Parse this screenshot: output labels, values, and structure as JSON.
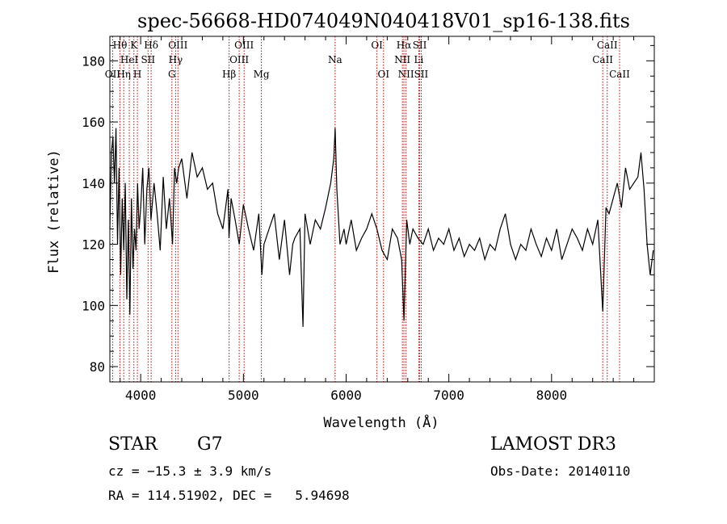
{
  "chart_data": {
    "type": "line",
    "title": "spec-56668-HD074049N040418V01_sp16-138.fits",
    "xlabel": "Wavelength (Å)",
    "ylabel": "Flux (relative)",
    "xlim": [
      3700,
      9000
    ],
    "ylim": [
      75,
      188
    ],
    "x_ticks": [
      4000,
      5000,
      6000,
      7000,
      8000
    ],
    "y_ticks": [
      80,
      100,
      120,
      140,
      160,
      180
    ],
    "grid": false,
    "line_color": "#000000",
    "marker_color": "#cc0000",
    "series": [
      {
        "x": [
          3700,
          3715,
          3730,
          3745,
          3760,
          3775,
          3790,
          3805,
          3820,
          3835,
          3850,
          3865,
          3880,
          3895,
          3910,
          3925,
          3940,
          3955,
          3970,
          3985,
          4000,
          4020,
          4040,
          4060,
          4080,
          4100,
          4130,
          4160,
          4190,
          4220,
          4250,
          4280,
          4310,
          4330,
          4350,
          4370,
          4400,
          4450,
          4500,
          4550,
          4600,
          4650,
          4700,
          4750,
          4800,
          4850,
          4860,
          4880,
          4920,
          4960,
          5000,
          5050,
          5100,
          5150,
          5180,
          5200,
          5250,
          5300,
          5350,
          5400,
          5450,
          5480,
          5500,
          5550,
          5580,
          5600,
          5650,
          5700,
          5750,
          5800,
          5850,
          5880,
          5893,
          5910,
          5940,
          5980,
          6000,
          6050,
          6100,
          6150,
          6200,
          6250,
          6300,
          6350,
          6400,
          6450,
          6500,
          6540,
          6563,
          6590,
          6620,
          6650,
          6700,
          6750,
          6800,
          6850,
          6900,
          6950,
          7000,
          7050,
          7100,
          7150,
          7200,
          7250,
          7300,
          7350,
          7400,
          7450,
          7500,
          7550,
          7600,
          7650,
          7700,
          7750,
          7800,
          7850,
          7900,
          7950,
          8000,
          8050,
          8100,
          8150,
          8200,
          8250,
          8300,
          8350,
          8400,
          8450,
          8498,
          8530,
          8560,
          8600,
          8640,
          8680,
          8720,
          8760,
          8800,
          8840,
          8870,
          8900,
          8930,
          8960,
          8990
        ],
        "y": [
          125,
          150,
          155,
          140,
          158,
          120,
          145,
          110,
          135,
          118,
          140,
          102,
          128,
          97,
          135,
          112,
          125,
          118,
          140,
          125,
          132,
          145,
          120,
          138,
          145,
          128,
          140,
          130,
          118,
          142,
          125,
          135,
          120,
          145,
          140,
          145,
          148,
          135,
          150,
          142,
          145,
          138,
          140,
          130,
          125,
          138,
          122,
          135,
          128,
          120,
          133,
          125,
          118,
          130,
          110,
          120,
          125,
          130,
          115,
          128,
          110,
          120,
          122,
          125,
          93,
          130,
          120,
          128,
          125,
          132,
          140,
          148,
          158,
          138,
          120,
          125,
          120,
          128,
          118,
          122,
          125,
          130,
          125,
          118,
          115,
          125,
          122,
          115,
          95,
          128,
          120,
          125,
          122,
          120,
          125,
          118,
          122,
          120,
          125,
          118,
          122,
          116,
          120,
          118,
          122,
          115,
          120,
          118,
          125,
          130,
          120,
          115,
          120,
          118,
          125,
          120,
          116,
          122,
          118,
          125,
          115,
          120,
          125,
          122,
          118,
          125,
          120,
          128,
          98,
          132,
          130,
          135,
          140,
          132,
          145,
          138,
          140,
          142,
          150,
          138,
          120,
          110,
          118
        ]
      }
    ],
    "lines": [
      {
        "x": 3727,
        "label": "OII",
        "row": 3
      },
      {
        "x": 3798,
        "label": "Hθ",
        "row": 1
      },
      {
        "x": 3835,
        "label": "Hη",
        "row": 3
      },
      {
        "x": 3889,
        "label": "HeI",
        "row": 2
      },
      {
        "x": 3934,
        "label": "K",
        "row": 1
      },
      {
        "x": 3968,
        "label": "H",
        "row": 3
      },
      {
        "x": 4072,
        "label": "SII",
        "row": 2
      },
      {
        "x": 4102,
        "label": "Hδ",
        "row": 1
      },
      {
        "x": 4304,
        "label": "G",
        "row": 3
      },
      {
        "x": 4340,
        "label": "Hγ",
        "row": 2
      },
      {
        "x": 4363,
        "label": "OIII",
        "row": 1
      },
      {
        "x": 4861,
        "label": "Hβ",
        "row": 3
      },
      {
        "x": 4959,
        "label": "OIII",
        "row": 2
      },
      {
        "x": 5007,
        "label": "OIII",
        "row": 1
      },
      {
        "x": 5175,
        "label": "Mg",
        "row": 3
      },
      {
        "x": 5893,
        "label": "Na",
        "row": 2
      },
      {
        "x": 6300,
        "label": "OI",
        "row": 1
      },
      {
        "x": 6364,
        "label": "OI",
        "row": 3
      },
      {
        "x": 6548,
        "label": "NII",
        "row": 2
      },
      {
        "x": 6563,
        "label": "Hα",
        "row": 1
      },
      {
        "x": 6583,
        "label": "NII",
        "row": 3
      },
      {
        "x": 6707,
        "label": "Li",
        "row": 2
      },
      {
        "x": 6716,
        "label": "SII",
        "row": 1
      },
      {
        "x": 6731,
        "label": "SII",
        "row": 3
      },
      {
        "x": 8498,
        "label": "CaII",
        "row": 2
      },
      {
        "x": 8542,
        "label": "CaII",
        "row": 1
      },
      {
        "x": 8662,
        "label": "CaII",
        "row": 3
      }
    ]
  },
  "info": {
    "object_class": "STAR",
    "subclass": "G7",
    "redshift": "cz = −15.3 ± 3.9 km/s",
    "coords": "RA = 114.51902, DEC =   5.94698",
    "survey": "LAMOST DR3",
    "obs_date": "Obs-Date: 20140110"
  }
}
